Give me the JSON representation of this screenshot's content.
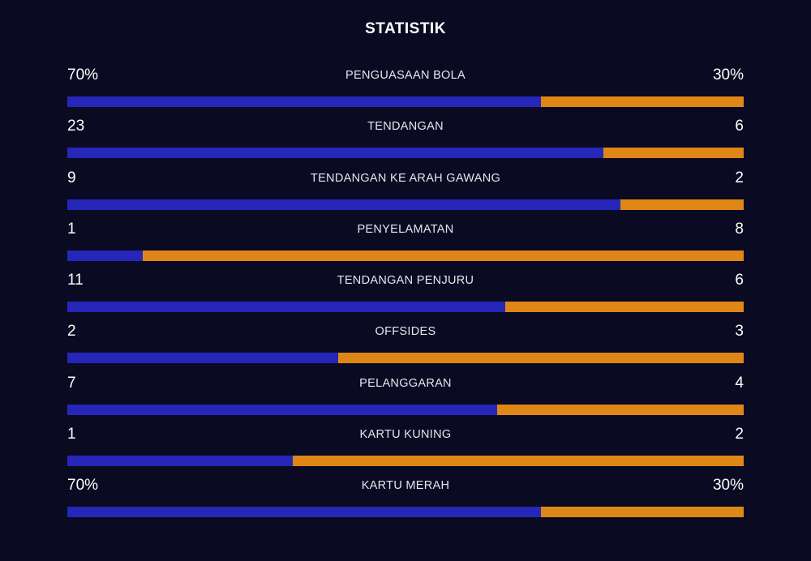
{
  "title": "STATISTIK",
  "colors": {
    "background": "#0a0a23",
    "text": "#ffffff",
    "label": "#e6e6ee",
    "home": "#2626b8",
    "away": "#df8716"
  },
  "stats": [
    {
      "label": "PENGUASAAN BOLA",
      "home": "70%",
      "away": "30%",
      "home_share": 0.7
    },
    {
      "label": "TENDANGAN",
      "home": "23",
      "away": "6",
      "home_share": 0.793
    },
    {
      "label": "TENDANGAN KE ARAH GAWANG",
      "home": "9",
      "away": "2",
      "home_share": 0.818
    },
    {
      "label": "PENYELAMATAN",
      "home": "1",
      "away": "8",
      "home_share": 0.111
    },
    {
      "label": "TENDANGAN PENJURU",
      "home": "11",
      "away": "6",
      "home_share": 0.647
    },
    {
      "label": "OFFSIDES",
      "home": "2",
      "away": "3",
      "home_share": 0.4
    },
    {
      "label": "PELANGGARAN",
      "home": "7",
      "away": "4",
      "home_share": 0.636
    },
    {
      "label": "KARTU KUNING",
      "home": "1",
      "away": "2",
      "home_share": 0.333
    },
    {
      "label": "KARTU MERAH",
      "home": "70%",
      "away": "30%",
      "home_share": 0.7
    }
  ]
}
